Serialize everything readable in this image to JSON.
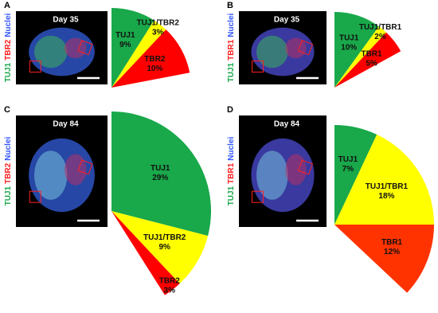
{
  "chart_data": [
    {
      "type": "pie",
      "panel": "A",
      "day": "Day 35",
      "stains": [
        "TUJ1",
        "TBR2",
        "Nuclei"
      ],
      "stain_colors": [
        "#19a84a",
        "#ff2020",
        "#3355ff"
      ],
      "categories": [
        "TUJ1",
        "TUJ1/TBR2",
        "TBR2"
      ],
      "values": [
        9,
        3,
        10
      ],
      "value_labels": [
        "9%",
        "3%",
        "10%"
      ],
      "colors": [
        "#19a84a",
        "#ffff00",
        "#ff0000"
      ]
    },
    {
      "type": "pie",
      "panel": "B",
      "day": "Day 35",
      "stains": [
        "TUJ1",
        "TBR1",
        "Nuclei"
      ],
      "stain_colors": [
        "#19a84a",
        "#ff2020",
        "#3355ff"
      ],
      "categories": [
        "TUJ1",
        "TUJ1/TBR1",
        "TBR1"
      ],
      "values": [
        10,
        2,
        5
      ],
      "value_labels": [
        "10%",
        "2%",
        "5%"
      ],
      "colors": [
        "#19a84a",
        "#ffff00",
        "#ff0000"
      ]
    },
    {
      "type": "pie",
      "panel": "C",
      "day": "Day 84",
      "stains": [
        "TUJ1",
        "TBR2",
        "Nuclei"
      ],
      "stain_colors": [
        "#19a84a",
        "#ff2020",
        "#3355ff"
      ],
      "categories": [
        "TUJ1",
        "TUJ1/TBR2",
        "TBR2"
      ],
      "values": [
        29,
        9,
        3
      ],
      "value_labels": [
        "29%",
        "9%",
        "3%"
      ],
      "colors": [
        "#19a84a",
        "#ffff00",
        "#ff0000"
      ]
    },
    {
      "type": "pie",
      "panel": "D",
      "day": "Day 84",
      "stains": [
        "TUJ1",
        "TBR1",
        "Nuclei"
      ],
      "stain_colors": [
        "#19a84a",
        "#ff2020",
        "#3355ff"
      ],
      "categories": [
        "TUJ1",
        "TUJ1/TBR1",
        "TBR1"
      ],
      "values": [
        7,
        18,
        12
      ],
      "value_labels": [
        "7%",
        "18%",
        "12%"
      ],
      "colors": [
        "#19a84a",
        "#ffff00",
        "#ff3300"
      ]
    }
  ]
}
